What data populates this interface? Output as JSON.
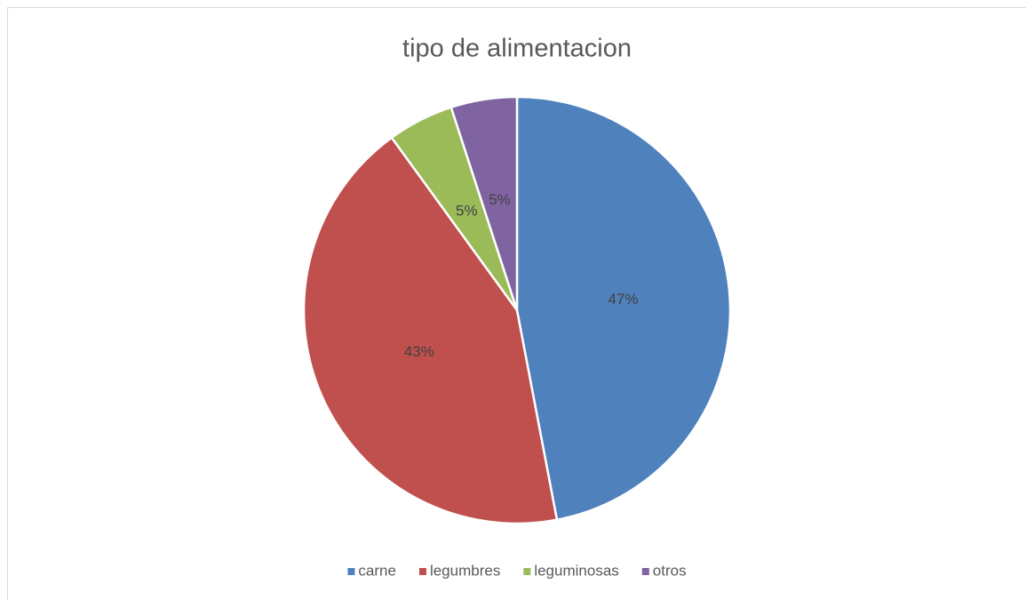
{
  "chart_data": {
    "type": "pie",
    "title": "tipo de alimentacion",
    "categories": [
      "carne",
      "legumbres",
      "leguminosas",
      "otros"
    ],
    "values": [
      47,
      43,
      5,
      5
    ],
    "value_labels": [
      "47%",
      "43%",
      "5%",
      "5%"
    ],
    "colors": [
      "#4f81bd",
      "#c0504d",
      "#9bbb59",
      "#8064a2"
    ],
    "legend": "bottom"
  }
}
